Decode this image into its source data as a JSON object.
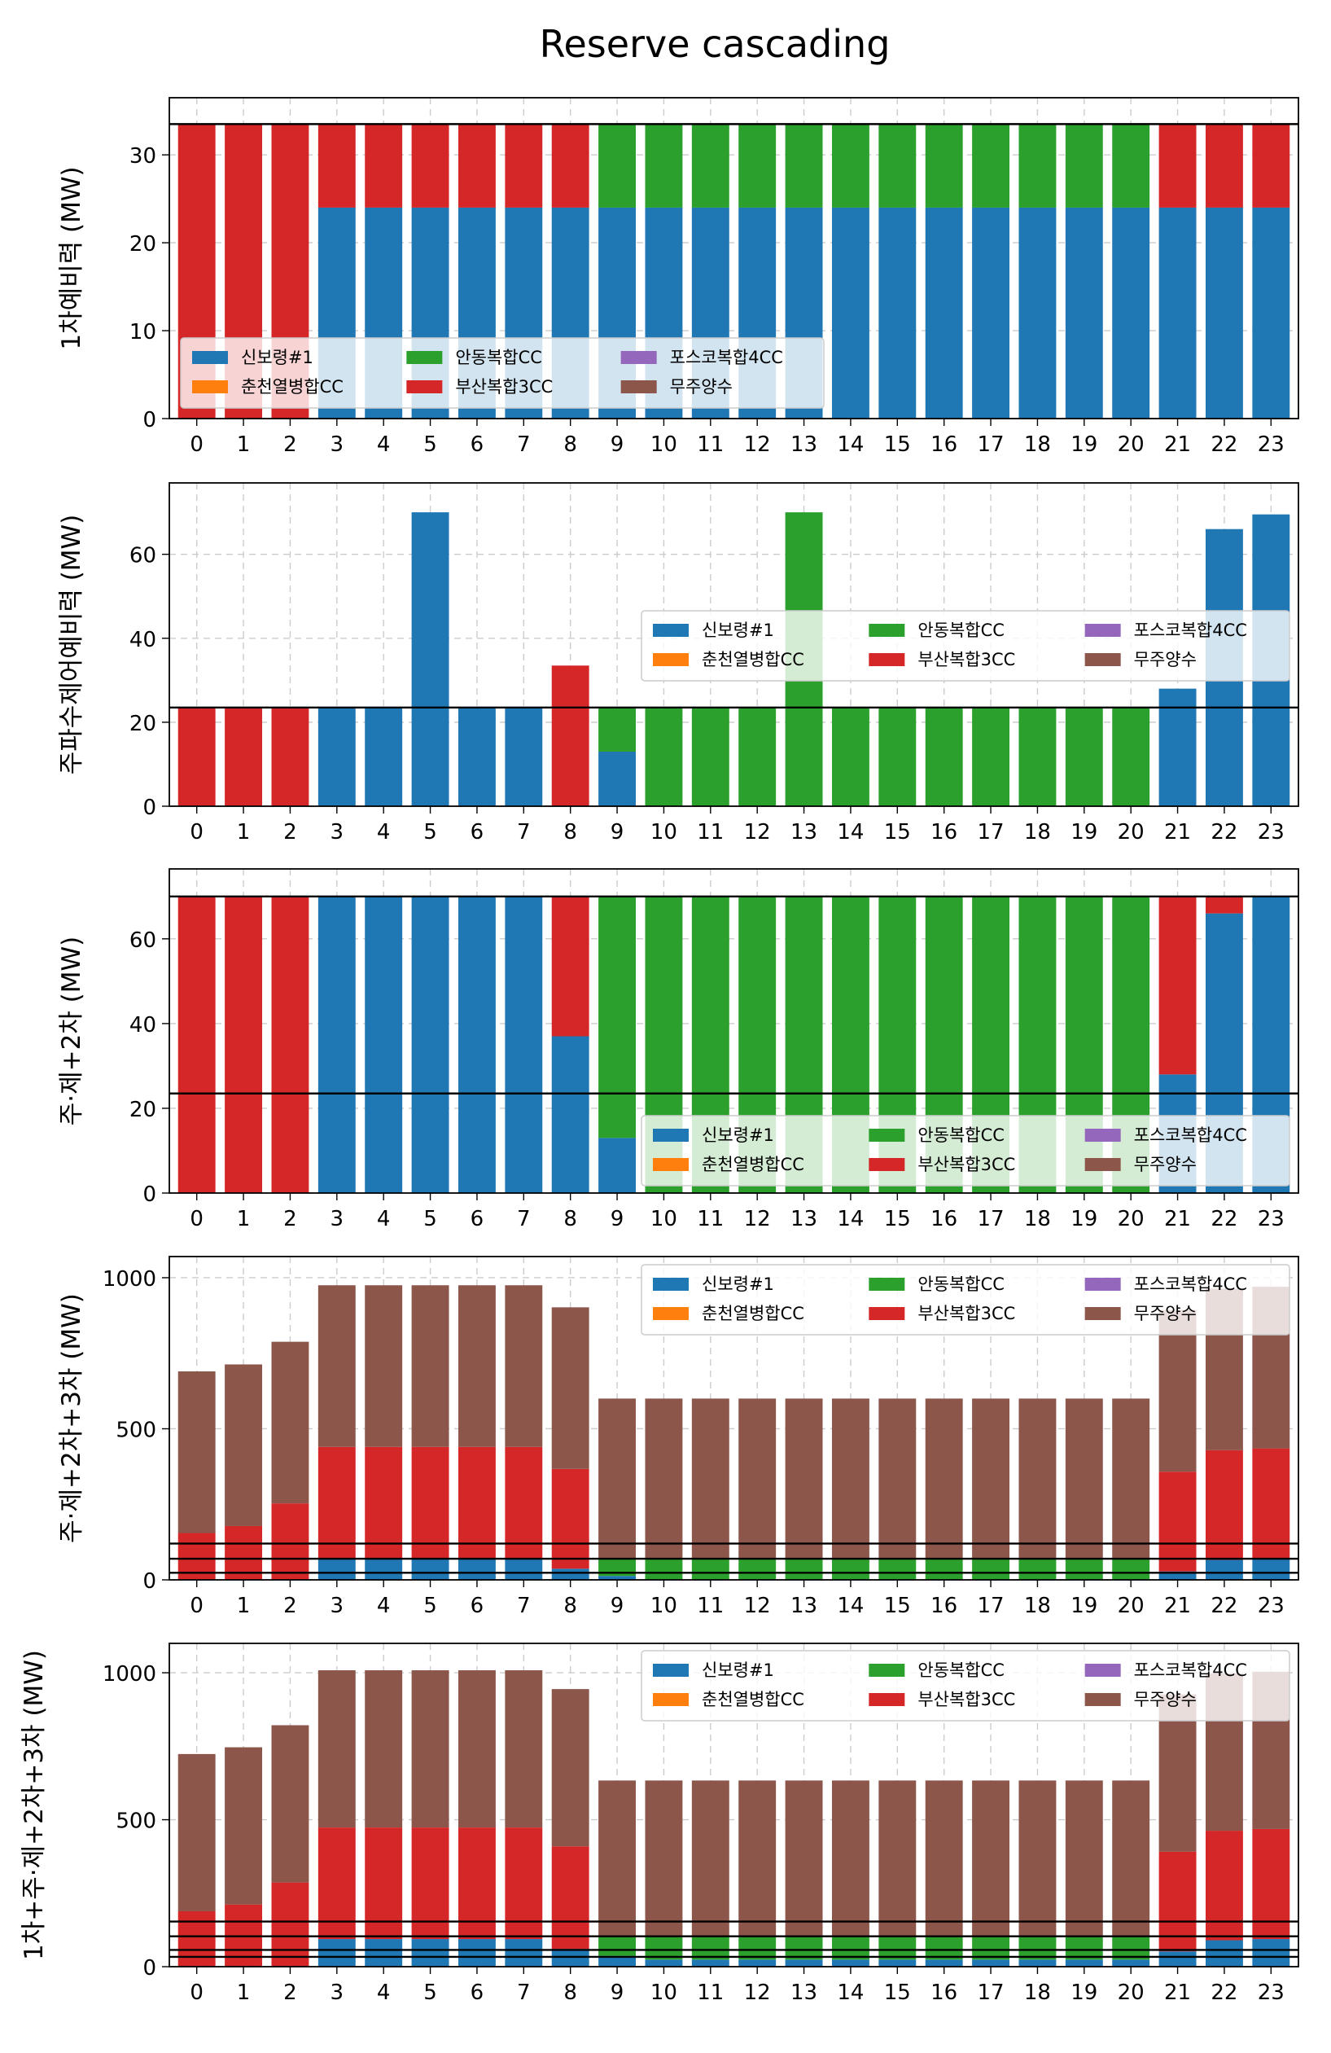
{
  "title": "Reserve cascading",
  "colors": {
    "신보령#1": "#1f77b4",
    "춘천열병합CC": "#ff7f0e",
    "안동복합CC": "#2ca02c",
    "부산복합3CC": "#d62728",
    "포스코복합4CC": "#9467bd",
    "무주양수": "#8c564b"
  },
  "chart_data": [
    {
      "type": "bar",
      "stacked": true,
      "ylabel": "1차예비력 (MW)",
      "ylim": [
        0,
        36.5
      ],
      "yticks": [
        0,
        10,
        20,
        30
      ],
      "grid": true,
      "legend_position": "lower-left",
      "hlines": [
        33.5
      ],
      "categories": [
        "0",
        "1",
        "2",
        "3",
        "4",
        "5",
        "6",
        "7",
        "8",
        "9",
        "10",
        "11",
        "12",
        "13",
        "14",
        "15",
        "16",
        "17",
        "18",
        "19",
        "20",
        "21",
        "22",
        "23"
      ],
      "series": [
        {
          "name": "신보령#1",
          "values": [
            0,
            0,
            0,
            24,
            24,
            24,
            24,
            24,
            24,
            24,
            24,
            24,
            24,
            24,
            24,
            24,
            24,
            24,
            24,
            24,
            24,
            24,
            24,
            24
          ]
        },
        {
          "name": "춘천열병합CC",
          "values": [
            0,
            0,
            0,
            0,
            0,
            0,
            0,
            0,
            0,
            0,
            0,
            0,
            0,
            0,
            0,
            0,
            0,
            0,
            0,
            0,
            0,
            0,
            0,
            0
          ]
        },
        {
          "name": "안동복합CC",
          "values": [
            0,
            0,
            0,
            0,
            0,
            0,
            0,
            0,
            0,
            9.5,
            9.5,
            9.5,
            9.5,
            9.5,
            9.5,
            9.5,
            9.5,
            9.5,
            9.5,
            9.5,
            9.5,
            0,
            0,
            0
          ]
        },
        {
          "name": "부산복합3CC",
          "values": [
            33.5,
            33.5,
            33.5,
            9.5,
            9.5,
            9.5,
            9.5,
            9.5,
            9.5,
            0,
            0,
            0,
            0,
            0,
            0,
            0,
            0,
            0,
            0,
            0,
            0,
            9.5,
            9.5,
            9.5
          ]
        },
        {
          "name": "포스코복합4CC",
          "values": [
            0,
            0,
            0,
            0,
            0,
            0,
            0,
            0,
            0,
            0,
            0,
            0,
            0,
            0,
            0,
            0,
            0,
            0,
            0,
            0,
            0,
            0,
            0,
            0
          ]
        },
        {
          "name": "무주양수",
          "values": [
            0,
            0,
            0,
            0,
            0,
            0,
            0,
            0,
            0,
            0,
            0,
            0,
            0,
            0,
            0,
            0,
            0,
            0,
            0,
            0,
            0,
            0,
            0,
            0
          ]
        }
      ]
    },
    {
      "type": "bar",
      "stacked": true,
      "ylabel": "주파수제어예비력 (MW)",
      "ylim": [
        0,
        77
      ],
      "yticks": [
        0,
        20,
        40,
        60
      ],
      "grid": true,
      "legend_position": "center-right",
      "hlines": [
        23.5
      ],
      "categories": [
        "0",
        "1",
        "2",
        "3",
        "4",
        "5",
        "6",
        "7",
        "8",
        "9",
        "10",
        "11",
        "12",
        "13",
        "14",
        "15",
        "16",
        "17",
        "18",
        "19",
        "20",
        "21",
        "22",
        "23"
      ],
      "series": [
        {
          "name": "신보령#1",
          "values": [
            0,
            0,
            0,
            23.5,
            23.5,
            70,
            23.5,
            23.5,
            0,
            13,
            0,
            0,
            0,
            0,
            0,
            0,
            0,
            0,
            0,
            0,
            0,
            28,
            66,
            69.5
          ]
        },
        {
          "name": "춘천열병합CC",
          "values": [
            0,
            0,
            0,
            0,
            0,
            0,
            0,
            0,
            0,
            0,
            0,
            0,
            0,
            0,
            0,
            0,
            0,
            0,
            0,
            0,
            0,
            0,
            0,
            0
          ]
        },
        {
          "name": "안동복합CC",
          "values": [
            0,
            0,
            0,
            0,
            0,
            0,
            0,
            0,
            0,
            10.5,
            23.5,
            23.5,
            23.5,
            70,
            23.5,
            23.5,
            23.5,
            23.5,
            23.5,
            23.5,
            23.5,
            0,
            0,
            0
          ]
        },
        {
          "name": "부산복합3CC",
          "values": [
            23.5,
            23.5,
            23.5,
            0,
            0,
            0,
            0,
            0,
            33.5,
            0,
            0,
            0,
            0,
            0,
            0,
            0,
            0,
            0,
            0,
            0,
            0,
            0,
            0,
            0
          ]
        },
        {
          "name": "포스코복합4CC",
          "values": [
            0,
            0,
            0,
            0,
            0,
            0,
            0,
            0,
            0,
            0,
            0,
            0,
            0,
            0,
            0,
            0,
            0,
            0,
            0,
            0,
            0,
            0,
            0,
            0
          ]
        },
        {
          "name": "무주양수",
          "values": [
            0,
            0,
            0,
            0,
            0,
            0,
            0,
            0,
            0,
            0,
            0,
            0,
            0,
            0,
            0,
            0,
            0,
            0,
            0,
            0,
            0,
            0,
            0,
            0
          ]
        }
      ]
    },
    {
      "type": "bar",
      "stacked": true,
      "ylabel": "주·제+2차 (MW)",
      "ylim": [
        0,
        76.5
      ],
      "yticks": [
        0,
        20,
        40,
        60
      ],
      "grid": true,
      "legend_position": "lower-right",
      "hlines": [
        23.5,
        70
      ],
      "categories": [
        "0",
        "1",
        "2",
        "3",
        "4",
        "5",
        "6",
        "7",
        "8",
        "9",
        "10",
        "11",
        "12",
        "13",
        "14",
        "15",
        "16",
        "17",
        "18",
        "19",
        "20",
        "21",
        "22",
        "23"
      ],
      "series": [
        {
          "name": "신보령#1",
          "values": [
            0,
            0,
            0,
            70,
            70,
            70,
            70,
            70,
            37,
            13,
            0,
            0,
            0,
            0,
            0,
            0,
            0,
            0,
            0,
            0,
            0,
            28,
            66,
            70
          ]
        },
        {
          "name": "춘천열병합CC",
          "values": [
            0,
            0,
            0,
            0,
            0,
            0,
            0,
            0,
            0,
            0,
            0,
            0,
            0,
            0,
            0,
            0,
            0,
            0,
            0,
            0,
            0,
            0,
            0,
            0
          ]
        },
        {
          "name": "안동복합CC",
          "values": [
            0,
            0,
            0,
            0,
            0,
            0,
            0,
            0,
            0,
            57,
            70,
            70,
            70,
            70,
            70,
            70,
            70,
            70,
            70,
            70,
            70,
            0,
            0,
            0
          ]
        },
        {
          "name": "부산복합3CC",
          "values": [
            70,
            70,
            70,
            0,
            0,
            0,
            0,
            0,
            33,
            0,
            0,
            0,
            0,
            0,
            0,
            0,
            0,
            0,
            0,
            0,
            0,
            42,
            4,
            0
          ]
        },
        {
          "name": "포스코복합4CC",
          "values": [
            0,
            0,
            0,
            0,
            0,
            0,
            0,
            0,
            0,
            0,
            0,
            0,
            0,
            0,
            0,
            0,
            0,
            0,
            0,
            0,
            0,
            0,
            0,
            0
          ]
        },
        {
          "name": "무주양수",
          "values": [
            0,
            0,
            0,
            0,
            0,
            0,
            0,
            0,
            0,
            0,
            0,
            0,
            0,
            0,
            0,
            0,
            0,
            0,
            0,
            0,
            0,
            0,
            0,
            0
          ]
        }
      ]
    },
    {
      "type": "bar",
      "stacked": true,
      "ylabel": "주·제+2차+3차 (MW)",
      "ylim": [
        0,
        1070
      ],
      "yticks": [
        0,
        500,
        1000
      ],
      "grid": true,
      "legend_position": "top-right",
      "hlines": [
        23.5,
        70,
        120
      ],
      "categories": [
        "0",
        "1",
        "2",
        "3",
        "4",
        "5",
        "6",
        "7",
        "8",
        "9",
        "10",
        "11",
        "12",
        "13",
        "14",
        "15",
        "16",
        "17",
        "18",
        "19",
        "20",
        "21",
        "22",
        "23"
      ],
      "series": [
        {
          "name": "신보령#1",
          "values": [
            0,
            0,
            0,
            70,
            70,
            70,
            70,
            70,
            37,
            13,
            0,
            0,
            0,
            0,
            0,
            0,
            0,
            0,
            0,
            0,
            0,
            28,
            66,
            70
          ]
        },
        {
          "name": "춘천열병합CC",
          "values": [
            0,
            0,
            0,
            0,
            0,
            0,
            0,
            0,
            0,
            0,
            0,
            0,
            0,
            0,
            0,
            0,
            0,
            0,
            0,
            0,
            0,
            0,
            0,
            0
          ]
        },
        {
          "name": "안동복합CC",
          "values": [
            0,
            0,
            0,
            0,
            0,
            0,
            0,
            0,
            0,
            57,
            70,
            70,
            70,
            70,
            70,
            70,
            70,
            70,
            70,
            70,
            70,
            0,
            0,
            0
          ]
        },
        {
          "name": "부산복합3CC",
          "values": [
            155,
            178,
            253,
            370,
            370,
            370,
            370,
            370,
            330,
            0,
            0,
            0,
            0,
            0,
            0,
            0,
            0,
            0,
            0,
            0,
            0,
            330,
            363,
            365
          ]
        },
        {
          "name": "포스코복합4CC",
          "values": [
            0,
            0,
            0,
            0,
            0,
            0,
            0,
            0,
            0,
            0,
            0,
            0,
            0,
            0,
            0,
            0,
            0,
            0,
            0,
            0,
            0,
            0,
            0,
            0
          ]
        },
        {
          "name": "무주양수",
          "values": [
            535,
            535,
            535,
            535,
            535,
            535,
            535,
            535,
            535,
            530,
            530,
            530,
            530,
            530,
            530,
            530,
            530,
            530,
            530,
            530,
            530,
            535,
            535,
            535
          ]
        }
      ]
    },
    {
      "type": "bar",
      "stacked": true,
      "ylabel": "1차+주·제+2차+3차 (MW)",
      "ylim": [
        0,
        1100
      ],
      "yticks": [
        0,
        500,
        1000
      ],
      "grid": true,
      "legend_position": "top-right",
      "hlines": [
        33.5,
        57,
        103.5,
        153.5
      ],
      "categories": [
        "0",
        "1",
        "2",
        "3",
        "4",
        "5",
        "6",
        "7",
        "8",
        "9",
        "10",
        "11",
        "12",
        "13",
        "14",
        "15",
        "16",
        "17",
        "18",
        "19",
        "20",
        "21",
        "22",
        "23"
      ],
      "series": [
        {
          "name": "신보령#1",
          "values": [
            0,
            0,
            0,
            94,
            94,
            94,
            94,
            94,
            61,
            37,
            24,
            24,
            24,
            24,
            24,
            24,
            24,
            24,
            24,
            24,
            24,
            52,
            90,
            94
          ]
        },
        {
          "name": "춘천열병합CC",
          "values": [
            0,
            0,
            0,
            0,
            0,
            0,
            0,
            0,
            0,
            0,
            0,
            0,
            0,
            0,
            0,
            0,
            0,
            0,
            0,
            0,
            0,
            0,
            0,
            0
          ]
        },
        {
          "name": "안동복합CC",
          "values": [
            0,
            0,
            0,
            0,
            0,
            0,
            0,
            0,
            0,
            66.5,
            79.5,
            79.5,
            79.5,
            79.5,
            79.5,
            79.5,
            79.5,
            79.5,
            79.5,
            79.5,
            79.5,
            0,
            0,
            0
          ]
        },
        {
          "name": "부산복합3CC",
          "values": [
            188.5,
            211.5,
            286.5,
            379.5,
            379.5,
            379.5,
            379.5,
            379.5,
            348.5,
            0,
            0,
            0,
            0,
            0,
            0,
            0,
            0,
            0,
            0,
            0,
            0,
            339.5,
            372.5,
            374.5
          ]
        },
        {
          "name": "포스코복합4CC",
          "values": [
            0,
            0,
            0,
            0,
            0,
            0,
            0,
            0,
            0,
            0,
            0,
            0,
            0,
            0,
            0,
            0,
            0,
            0,
            0,
            0,
            0,
            0,
            0,
            0
          ]
        },
        {
          "name": "무주양수",
          "values": [
            535,
            535,
            535,
            535,
            535,
            535,
            535,
            535,
            535,
            530,
            530,
            530,
            530,
            530,
            530,
            530,
            530,
            530,
            530,
            530,
            530,
            535,
            535,
            535
          ]
        }
      ]
    }
  ]
}
